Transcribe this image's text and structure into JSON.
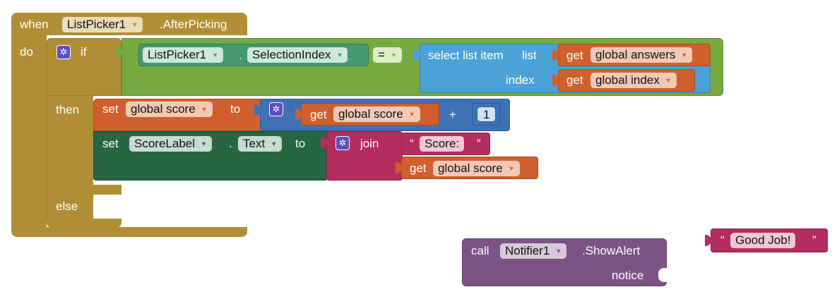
{
  "event": {
    "when_label": "when",
    "component": "ListPicker1",
    "event_name": ".AfterPicking",
    "do_label": "do"
  },
  "ifblock": {
    "if_label": "if",
    "then_label": "then",
    "else_label": "else"
  },
  "condition": {
    "component": "ListPicker1",
    "dot": ".",
    "property": "SelectionIndex",
    "operator": "="
  },
  "select_list": {
    "label": "select list item",
    "list_label": "list",
    "index_label": "index",
    "list_get_label": "get",
    "list_var": "global answers",
    "index_get_label": "get",
    "index_var": "global index"
  },
  "set_score": {
    "set_label": "set",
    "var": "global score",
    "to_label": "to",
    "get_label": "get",
    "get_var": "global score",
    "plus": "+",
    "number": "1"
  },
  "set_label_block": {
    "set_label": "set",
    "component": "ScoreLabel",
    "dot": ".",
    "property": "Text",
    "to_label": "to",
    "join_label": "join",
    "quote_open": "“",
    "string_value": "Score:",
    "quote_close": "”",
    "get_label": "get",
    "get_var": "global score"
  },
  "notifier": {
    "call_label": "call",
    "component": "Notifier1",
    "method": ".ShowAlert",
    "notice_label": "notice"
  },
  "loose_text": {
    "quote_open": "“",
    "value": "Good Job!",
    "quote_close": "”"
  },
  "colors": {
    "event_gold": "#b18e35",
    "control_gold": "#b18e35",
    "logic_green": "#77ab41",
    "component_green": "#439970",
    "setter_green": "#266643",
    "list_blue": "#4aa2d6",
    "var_orange": "#d05f2d",
    "math_blue": "#3f71b5",
    "text_pink": "#b32d5e",
    "call_purple": "#7c5385"
  },
  "icons": {
    "mutator": "gear-icon",
    "dropdown": "triangle-down-icon"
  }
}
